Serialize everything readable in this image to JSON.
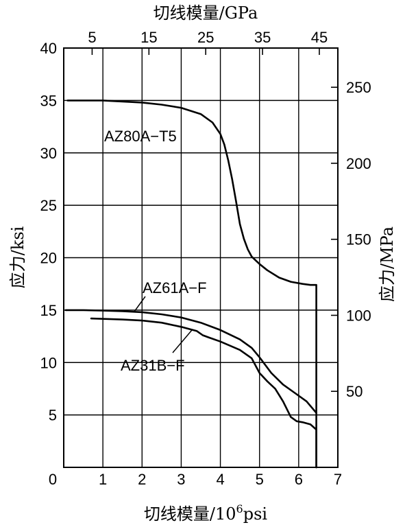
{
  "chart_data": {
    "type": "line",
    "title": "",
    "grid": true,
    "axes": {
      "bottom": {
        "label": "切线模量/10",
        "label_sup": "6",
        "label_tail": "psi",
        "range": [
          0,
          7
        ],
        "ticks": [
          0,
          1,
          2,
          3,
          4,
          5,
          6,
          7
        ]
      },
      "top": {
        "label": "切线模量/GPa",
        "range": [
          0,
          48.26
        ],
        "ticks": [
          5,
          15,
          25,
          35,
          45
        ]
      },
      "left": {
        "label": "应力/ksi",
        "range": [
          0,
          40
        ],
        "ticks": [
          5,
          10,
          15,
          20,
          25,
          30,
          35,
          40
        ]
      },
      "right": {
        "label": "应力/MPa",
        "range": [
          0,
          275.8
        ],
        "ticks": [
          50,
          100,
          150,
          200,
          250
        ]
      }
    },
    "series": [
      {
        "name": "AZ80A−T5",
        "x": [
          0.1,
          0.5,
          1.0,
          1.5,
          2.0,
          2.5,
          3.0,
          3.5,
          3.8,
          4.0,
          4.1,
          4.2,
          4.3,
          4.4,
          4.5,
          4.6,
          4.7,
          4.8,
          5.0,
          5.2,
          5.5,
          5.8,
          6.1,
          6.3,
          6.45,
          6.45
        ],
        "y": [
          35.0,
          35.0,
          35.0,
          34.9,
          34.8,
          34.6,
          34.3,
          33.7,
          32.9,
          31.8,
          30.8,
          29.3,
          27.5,
          25.4,
          23.2,
          21.8,
          20.8,
          20.1,
          19.4,
          18.8,
          18.1,
          17.7,
          17.5,
          17.4,
          17.4,
          0
        ]
      },
      {
        "name": "AZ61A−F",
        "x": [
          0.05,
          0.5,
          1.0,
          1.5,
          2.0,
          2.5,
          3.0,
          3.5,
          4.0,
          4.5,
          4.8,
          5.0,
          5.3,
          5.6,
          5.9,
          6.2,
          6.45
        ],
        "y": [
          15.0,
          15.0,
          14.95,
          14.9,
          14.8,
          14.6,
          14.3,
          13.8,
          13.1,
          12.2,
          11.4,
          10.5,
          9.0,
          7.9,
          7.1,
          6.3,
          5.2
        ]
      },
      {
        "name": "AZ31B−F",
        "x": [
          0.7,
          1.5,
          2.0,
          2.5,
          3.0,
          3.4,
          3.55,
          3.7,
          4.0,
          4.5,
          4.8,
          5.0,
          5.2,
          5.4,
          5.6,
          5.8,
          5.95,
          6.1,
          6.3,
          6.45,
          6.45
        ],
        "y": [
          14.2,
          14.1,
          14.0,
          13.8,
          13.4,
          13.0,
          12.6,
          12.4,
          12.0,
          11.2,
          10.4,
          9.0,
          8.2,
          7.5,
          6.3,
          4.8,
          4.4,
          4.3,
          4.1,
          3.6,
          0
        ]
      }
    ],
    "annotations": [
      {
        "series": "AZ80A−T5",
        "text": "AZ80A−T5"
      },
      {
        "series": "AZ61A−F",
        "text": "AZ61A−F"
      },
      {
        "series": "AZ31B−F",
        "text": "AZ31B−F"
      }
    ]
  }
}
